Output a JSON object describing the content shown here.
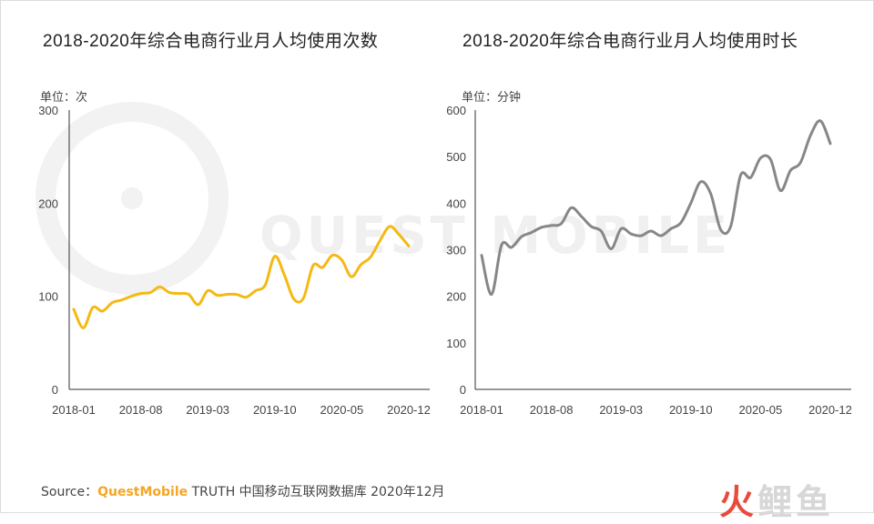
{
  "watermark": "QUEST MOBILE",
  "chart_data": [
    {
      "type": "line",
      "title": "2018-2020年综合电商行业月人均使用次数",
      "unit_label": "单位：次",
      "x_tick_labels": [
        "2018-01",
        "2018-08",
        "2019-03",
        "2019-10",
        "2020-05",
        "2020-12"
      ],
      "ylim": [
        0,
        300
      ],
      "y_ticks": [
        0,
        100,
        200,
        300
      ],
      "grid": false,
      "series": [
        {
          "color": "#f5b914",
          "x": [
            "2018-01",
            "2018-02",
            "2018-03",
            "2018-04",
            "2018-05",
            "2018-06",
            "2018-07",
            "2018-08",
            "2018-09",
            "2018-10",
            "2018-11",
            "2018-12",
            "2019-01",
            "2019-02",
            "2019-03",
            "2019-04",
            "2019-05",
            "2019-06",
            "2019-07",
            "2019-08",
            "2019-09",
            "2019-10",
            "2019-11",
            "2019-12",
            "2020-01",
            "2020-02",
            "2020-03",
            "2020-04",
            "2020-05",
            "2020-06",
            "2020-07",
            "2020-08",
            "2020-09",
            "2020-10",
            "2020-11",
            "2020-12"
          ],
          "values": [
            86,
            66,
            88,
            84,
            93,
            96,
            100,
            103,
            104,
            110,
            104,
            103,
            102,
            91,
            106,
            101,
            102,
            102,
            99,
            106,
            112,
            143,
            123,
            97,
            98,
            133,
            131,
            144,
            139,
            121,
            134,
            142,
            160,
            175,
            166,
            154
          ]
        }
      ]
    },
    {
      "type": "line",
      "title": "2018-2020年综合电商行业月人均使用时长",
      "unit_label": "单位：分钟",
      "x_tick_labels": [
        "2018-01",
        "2018-08",
        "2019-03",
        "2019-10",
        "2020-05",
        "2020-12"
      ],
      "ylim": [
        0,
        600
      ],
      "y_ticks": [
        0,
        100,
        200,
        300,
        400,
        500,
        600
      ],
      "grid": false,
      "series": [
        {
          "color": "#878787",
          "x": [
            "2018-01",
            "2018-02",
            "2018-03",
            "2018-04",
            "2018-05",
            "2018-06",
            "2018-07",
            "2018-08",
            "2018-09",
            "2018-10",
            "2018-11",
            "2018-12",
            "2019-01",
            "2019-02",
            "2019-03",
            "2019-04",
            "2019-05",
            "2019-06",
            "2019-07",
            "2019-08",
            "2019-09",
            "2019-10",
            "2019-11",
            "2019-12",
            "2020-01",
            "2020-02",
            "2020-03",
            "2020-04",
            "2020-05",
            "2020-06",
            "2020-07",
            "2020-08",
            "2020-09",
            "2020-10",
            "2020-11",
            "2020-12"
          ],
          "values": [
            288,
            204,
            310,
            305,
            328,
            337,
            348,
            352,
            356,
            390,
            372,
            350,
            340,
            302,
            345,
            334,
            330,
            340,
            330,
            345,
            358,
            400,
            446,
            420,
            343,
            350,
            460,
            455,
            497,
            494,
            427,
            470,
            487,
            545,
            577,
            528
          ]
        }
      ]
    }
  ],
  "source": {
    "label": "Source：",
    "brand": "QuestMobile",
    "rest": "TRUTH 中国移动互联网数据库 2020年12月"
  },
  "logo": {
    "part1": "火",
    "part2": "鲤",
    "part3": "鱼"
  }
}
